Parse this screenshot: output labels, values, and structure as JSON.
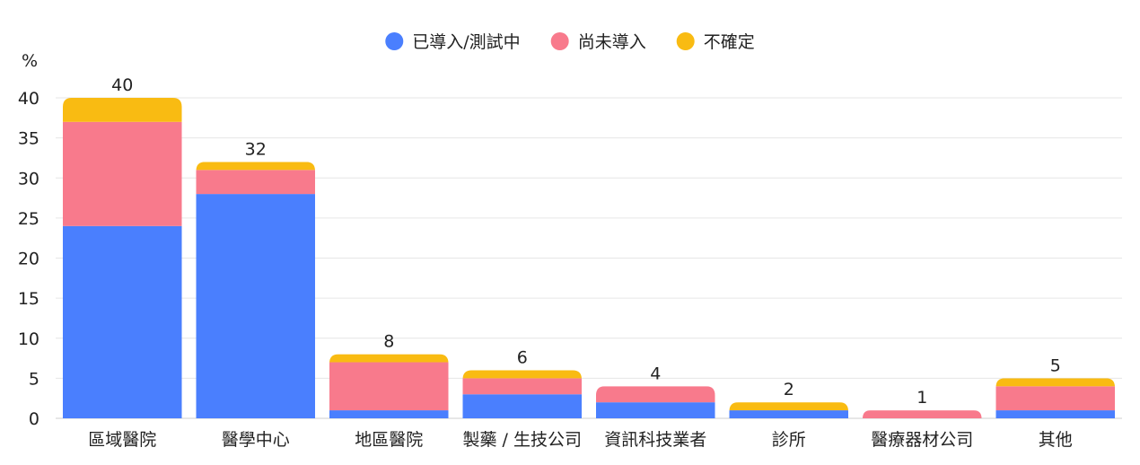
{
  "chart_data": {
    "type": "bar",
    "stacked": true,
    "title": "",
    "ylabel": "%",
    "xlabel": "",
    "ylim": [
      0,
      40
    ],
    "yticks": [
      0,
      5,
      10,
      15,
      20,
      25,
      30,
      35,
      40
    ],
    "grid": true,
    "legend_position": "top",
    "categories": [
      "區域醫院",
      "醫學中心",
      "地區醫院",
      "製藥 / 生技公司",
      "資訊科技業者",
      "診所",
      "醫療器材公司",
      "其他"
    ],
    "series": [
      {
        "name": "已導入/測試中",
        "color": "#4a7ffe",
        "values": [
          24,
          28,
          1,
          3,
          2,
          1,
          0,
          1
        ]
      },
      {
        "name": "尚未導入",
        "color": "#f87a8c",
        "values": [
          13,
          3,
          6,
          2,
          2,
          0,
          1,
          3
        ]
      },
      {
        "name": "不確定",
        "color": "#f9bb12",
        "values": [
          3,
          1,
          1,
          1,
          0,
          1,
          0,
          1
        ]
      }
    ],
    "totals": [
      40,
      32,
      8,
      6,
      4,
      2,
      1,
      5
    ]
  }
}
